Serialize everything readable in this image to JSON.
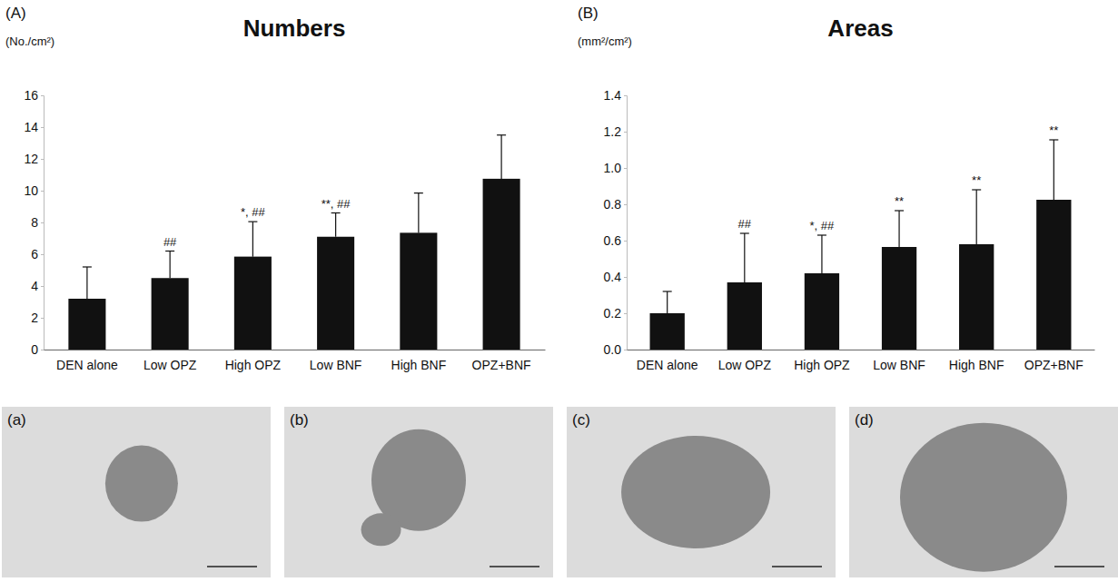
{
  "chart_data": [
    {
      "type": "bar",
      "panel": "(A)",
      "title": "Numbers",
      "y_label": "(No./cm²)",
      "categories": [
        "DEN alone",
        "Low OPZ",
        "High OPZ",
        "Low BNF",
        "High BNF",
        "OPZ+BNF"
      ],
      "values": [
        3.2,
        4.5,
        5.85,
        7.1,
        7.35,
        10.75
      ],
      "errors": [
        2.0,
        1.7,
        2.2,
        1.5,
        2.5,
        2.75
      ],
      "annotations": [
        null,
        "##",
        "*, ##",
        "**, ##",
        null,
        null
      ],
      "color": "#111111",
      "ylim": [
        0,
        16
      ],
      "yticks": [
        0,
        2,
        4,
        6,
        8,
        10,
        12,
        14,
        16
      ],
      "grid": false
    },
    {
      "type": "bar",
      "panel": "(B)",
      "title": "Areas",
      "y_label": "(mm²/cm²)",
      "categories": [
        "DEN alone",
        "Low OPZ",
        "High OPZ",
        "Low BNF",
        "High BNF",
        "OPZ+BNF"
      ],
      "values": [
        0.2,
        0.37,
        0.42,
        0.565,
        0.58,
        0.825
      ],
      "errors": [
        0.12,
        0.27,
        0.21,
        0.2,
        0.3,
        0.33
      ],
      "annotations": [
        null,
        "##",
        "*, ##",
        "**",
        "**",
        "**"
      ],
      "color": "#111111",
      "ylim": [
        0,
        1.4
      ],
      "yticks": [
        {
          "value": 0,
          "label": "0.0"
        },
        0.2,
        0.4,
        0.6,
        0.8,
        {
          "value": 1,
          "label": "1.0"
        },
        1.2,
        1.4
      ],
      "grid": false
    }
  ],
  "images": [
    "(a)",
    "(b)",
    "(c)",
    "(d)"
  ]
}
